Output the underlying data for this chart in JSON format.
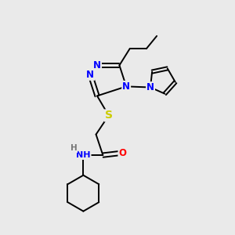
{
  "bg_color": "#eaeaea",
  "bond_color": "#000000",
  "atom_colors": {
    "N": "#0000ff",
    "S": "#cccc00",
    "O": "#ff0000",
    "C": "#000000",
    "H": "#777777"
  },
  "figsize": [
    3.0,
    3.0
  ],
  "dpi": 100,
  "lw": 1.4,
  "fs": 8.5
}
